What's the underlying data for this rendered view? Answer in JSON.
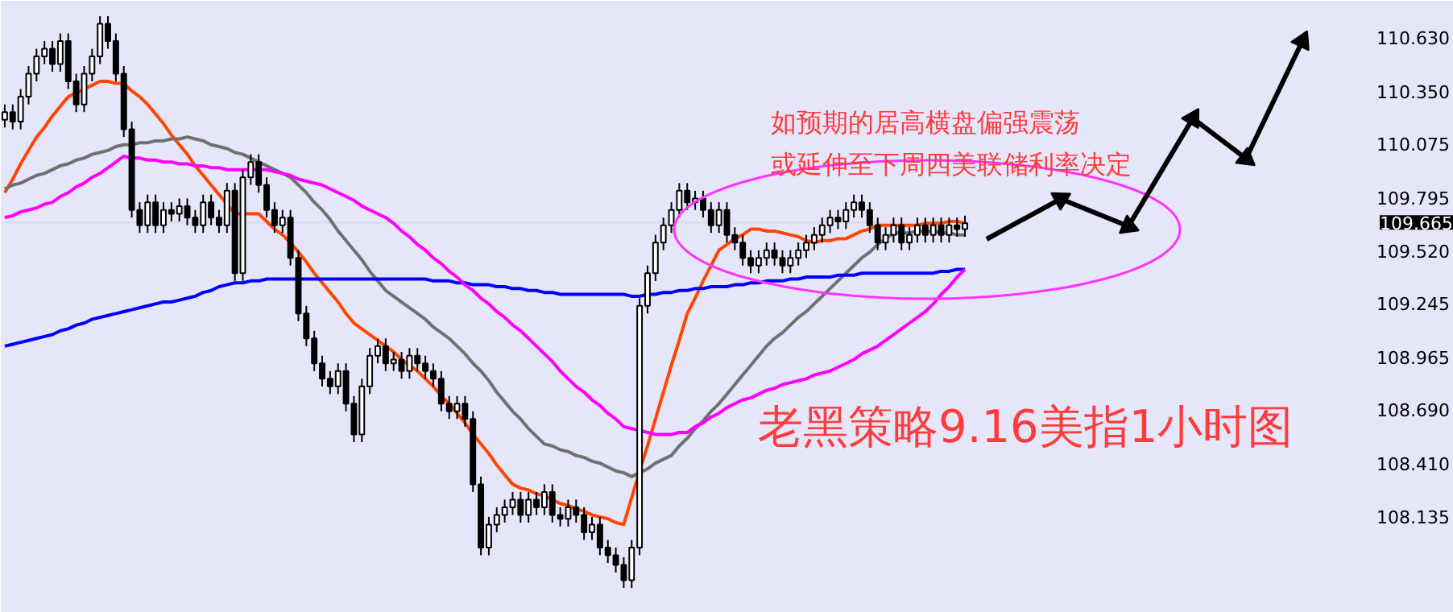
{
  "chart_data": {
    "type": "candlestick",
    "categories": [
      null,
      null,
      null,
      null,
      null,
      null,
      null,
      null,
      null,
      null,
      null,
      null,
      null,
      null,
      null,
      null,
      null,
      null,
      null,
      null,
      null,
      null,
      null,
      null,
      null,
      null,
      null,
      null,
      null,
      null,
      null,
      null,
      null,
      null,
      null,
      null,
      null,
      null,
      null,
      null,
      null,
      null,
      null,
      null,
      null,
      null,
      null,
      null,
      null,
      null,
      null,
      null,
      null,
      null,
      null,
      null,
      null,
      null,
      null,
      null,
      null,
      null,
      null,
      null,
      null,
      null,
      null,
      null,
      null,
      null,
      null,
      null,
      null,
      null,
      null,
      null,
      null,
      null,
      null,
      null,
      null,
      null,
      null,
      null,
      null,
      null,
      null,
      null,
      null,
      null,
      null,
      null,
      null,
      null,
      null,
      null,
      null,
      null,
      null,
      null,
      null,
      null,
      null,
      null,
      null,
      null,
      null,
      null,
      null,
      null,
      null,
      null,
      null,
      null,
      null,
      null,
      null,
      null,
      null,
      null,
      null,
      null
    ],
    "ohlc": [
      [
        110.2,
        110.28,
        110.16,
        110.24
      ],
      [
        110.24,
        110.28,
        110.15,
        110.19
      ],
      [
        110.19,
        110.36,
        110.15,
        110.32
      ],
      [
        110.32,
        110.48,
        110.28,
        110.44
      ],
      [
        110.44,
        110.57,
        110.4,
        110.53
      ],
      [
        110.53,
        110.61,
        110.49,
        110.57
      ],
      [
        110.57,
        110.61,
        110.45,
        110.49
      ],
      [
        110.49,
        110.65,
        110.45,
        110.61
      ],
      [
        110.61,
        110.65,
        110.36,
        110.4
      ],
      [
        110.4,
        110.44,
        110.24,
        110.28
      ],
      [
        110.28,
        110.48,
        110.24,
        110.44
      ],
      [
        110.44,
        110.57,
        110.4,
        110.53
      ],
      [
        110.53,
        110.74,
        110.49,
        110.7
      ],
      [
        110.7,
        110.74,
        110.57,
        110.61
      ],
      [
        110.61,
        110.65,
        110.4,
        110.44
      ],
      [
        110.44,
        110.48,
        110.11,
        110.15
      ],
      [
        110.15,
        110.19,
        109.69,
        109.73
      ],
      [
        109.73,
        109.77,
        109.61,
        109.65
      ],
      [
        109.65,
        109.81,
        109.61,
        109.77
      ],
      [
        109.77,
        109.81,
        109.61,
        109.65
      ],
      [
        109.65,
        109.77,
        109.61,
        109.73
      ],
      [
        109.73,
        109.77,
        109.67,
        109.71
      ],
      [
        109.71,
        109.79,
        109.67,
        109.75
      ],
      [
        109.75,
        109.79,
        109.65,
        109.69
      ],
      [
        109.69,
        109.73,
        109.61,
        109.65
      ],
      [
        109.65,
        109.81,
        109.61,
        109.77
      ],
      [
        109.77,
        109.81,
        109.65,
        109.69
      ],
      [
        109.69,
        109.73,
        109.61,
        109.65
      ],
      [
        109.65,
        109.87,
        109.61,
        109.83
      ],
      [
        109.83,
        109.87,
        109.36,
        109.4
      ],
      [
        109.4,
        109.94,
        109.36,
        109.9
      ],
      [
        109.9,
        110.02,
        109.86,
        109.98
      ],
      [
        109.98,
        110.02,
        109.82,
        109.86
      ],
      [
        109.86,
        109.9,
        109.69,
        109.73
      ],
      [
        109.73,
        109.77,
        109.61,
        109.65
      ],
      [
        109.65,
        109.73,
        109.61,
        109.69
      ],
      [
        109.69,
        109.73,
        109.44,
        109.48
      ],
      [
        109.48,
        109.52,
        109.15,
        109.19
      ],
      [
        109.19,
        109.23,
        109.02,
        109.06
      ],
      [
        109.06,
        109.1,
        108.89,
        108.93
      ],
      [
        108.93,
        108.97,
        108.81,
        108.85
      ],
      [
        108.85,
        108.89,
        108.77,
        108.81
      ],
      [
        108.81,
        108.93,
        108.77,
        108.89
      ],
      [
        108.89,
        108.93,
        108.68,
        108.72
      ],
      [
        108.72,
        108.76,
        108.52,
        108.56
      ],
      [
        108.56,
        108.85,
        108.52,
        108.81
      ],
      [
        108.81,
        109.01,
        108.77,
        108.97
      ],
      [
        108.97,
        109.06,
        108.93,
        109.02
      ],
      [
        109.02,
        109.06,
        108.89,
        108.93
      ],
      [
        108.93,
        108.99,
        108.89,
        108.95
      ],
      [
        108.95,
        108.99,
        108.85,
        108.89
      ],
      [
        108.89,
        109.01,
        108.85,
        108.97
      ],
      [
        108.97,
        109.01,
        108.89,
        108.93
      ],
      [
        108.93,
        108.97,
        108.85,
        108.89
      ],
      [
        108.89,
        108.93,
        108.81,
        108.85
      ],
      [
        108.85,
        108.89,
        108.68,
        108.72
      ],
      [
        108.72,
        108.76,
        108.64,
        108.68
      ],
      [
        108.68,
        108.76,
        108.64,
        108.72
      ],
      [
        108.72,
        108.76,
        108.6,
        108.64
      ],
      [
        108.64,
        108.68,
        108.26,
        108.3
      ],
      [
        108.3,
        108.34,
        107.93,
        107.97
      ],
      [
        107.97,
        108.13,
        107.93,
        108.09
      ],
      [
        108.09,
        108.18,
        108.05,
        108.14
      ],
      [
        108.14,
        108.22,
        108.1,
        108.18
      ],
      [
        108.18,
        108.26,
        108.14,
        108.22
      ],
      [
        108.22,
        108.26,
        108.1,
        108.14
      ],
      [
        108.14,
        108.26,
        108.1,
        108.22
      ],
      [
        108.22,
        108.26,
        108.14,
        108.18
      ],
      [
        108.18,
        108.3,
        108.14,
        108.26
      ],
      [
        108.26,
        108.3,
        108.1,
        108.14
      ],
      [
        108.14,
        108.18,
        108.08,
        108.12
      ],
      [
        108.12,
        108.22,
        108.08,
        108.18
      ],
      [
        108.18,
        108.22,
        108.1,
        108.14
      ],
      [
        108.14,
        108.18,
        108.01,
        108.05
      ],
      [
        108.05,
        108.13,
        108.01,
        108.09
      ],
      [
        108.09,
        108.13,
        107.93,
        107.97
      ],
      [
        107.97,
        108.01,
        107.89,
        107.93
      ],
      [
        107.93,
        107.97,
        107.84,
        107.88
      ],
      [
        107.88,
        107.92,
        107.76,
        107.8
      ],
      [
        107.8,
        108.01,
        107.76,
        107.97
      ],
      [
        107.97,
        109.27,
        107.93,
        109.23
      ],
      [
        109.23,
        109.44,
        109.19,
        109.4
      ],
      [
        109.4,
        109.6,
        109.36,
        109.56
      ],
      [
        109.56,
        109.69,
        109.52,
        109.65
      ],
      [
        109.65,
        109.77,
        109.61,
        109.73
      ],
      [
        109.73,
        109.87,
        109.69,
        109.83
      ],
      [
        109.83,
        109.87,
        109.73,
        109.77
      ],
      [
        109.77,
        109.83,
        109.73,
        109.79
      ],
      [
        109.79,
        109.83,
        109.69,
        109.73
      ],
      [
        109.73,
        109.77,
        109.61,
        109.65
      ],
      [
        109.65,
        109.77,
        109.61,
        109.73
      ],
      [
        109.73,
        109.77,
        109.56,
        109.6
      ],
      [
        109.6,
        109.64,
        109.52,
        109.56
      ],
      [
        109.56,
        109.6,
        109.44,
        109.48
      ],
      [
        109.48,
        109.52,
        109.4,
        109.44
      ],
      [
        109.44,
        109.52,
        109.4,
        109.48
      ],
      [
        109.48,
        109.56,
        109.44,
        109.52
      ],
      [
        109.52,
        109.56,
        109.44,
        109.48
      ],
      [
        109.48,
        109.52,
        109.4,
        109.44
      ],
      [
        109.44,
        109.52,
        109.4,
        109.48
      ],
      [
        109.48,
        109.56,
        109.44,
        109.52
      ],
      [
        109.52,
        109.6,
        109.48,
        109.56
      ],
      [
        109.56,
        109.64,
        109.52,
        109.6
      ],
      [
        109.6,
        109.69,
        109.56,
        109.65
      ],
      [
        109.65,
        109.73,
        109.61,
        109.69
      ],
      [
        109.69,
        109.73,
        109.63,
        109.67
      ],
      [
        109.67,
        109.77,
        109.63,
        109.73
      ],
      [
        109.73,
        109.81,
        109.69,
        109.77
      ],
      [
        109.77,
        109.81,
        109.69,
        109.73
      ],
      [
        109.73,
        109.77,
        109.61,
        109.65
      ],
      [
        109.65,
        109.69,
        109.52,
        109.56
      ],
      [
        109.56,
        109.64,
        109.52,
        109.6
      ],
      [
        109.6,
        109.69,
        109.56,
        109.65
      ],
      [
        109.65,
        109.69,
        109.52,
        109.56
      ],
      [
        109.56,
        109.64,
        109.52,
        109.6
      ],
      [
        109.6,
        109.69,
        109.56,
        109.65
      ],
      [
        109.65,
        109.69,
        109.56,
        109.6
      ],
      [
        109.6,
        109.69,
        109.56,
        109.65
      ],
      [
        109.65,
        109.69,
        109.56,
        109.6
      ],
      [
        109.6,
        109.69,
        109.56,
        109.65
      ],
      [
        109.65,
        109.69,
        109.59,
        109.63
      ],
      [
        109.63,
        109.7,
        109.59,
        109.66
      ]
    ],
    "series": [
      {
        "type": "line",
        "color": "#ff4500",
        "values": [
          109.82,
          109.89,
          109.97,
          110.04,
          110.11,
          110.16,
          110.22,
          110.27,
          110.32,
          110.34,
          110.36,
          110.38,
          110.4,
          110.4,
          110.39,
          110.39,
          110.35,
          110.32,
          110.28,
          110.23,
          110.18,
          110.12,
          110.07,
          110.02,
          109.96,
          109.91,
          109.86,
          109.81,
          109.76,
          109.71,
          109.71,
          109.71,
          109.71,
          109.67,
          109.63,
          109.6,
          109.56,
          109.51,
          109.46,
          109.4,
          109.35,
          109.3,
          109.25,
          109.19,
          109.14,
          109.11,
          109.08,
          109.05,
          109.02,
          108.99,
          108.95,
          108.92,
          108.89,
          108.85,
          108.81,
          108.76,
          108.72,
          108.67,
          108.62,
          108.56,
          108.51,
          108.46,
          108.4,
          108.35,
          108.3,
          108.28,
          108.27,
          108.25,
          108.24,
          108.22,
          108.2,
          108.19,
          108.17,
          108.16,
          108.14,
          108.13,
          108.12,
          108.1,
          108.09,
          108.23,
          108.37,
          108.5,
          108.64,
          108.78,
          108.92,
          109.05,
          109.19,
          109.27,
          109.36,
          109.44,
          109.52,
          109.55,
          109.58,
          109.6,
          109.63,
          109.63,
          109.62,
          109.62,
          109.61,
          109.6,
          109.59,
          109.57,
          109.56,
          109.57,
          109.57,
          109.58,
          109.58,
          109.6,
          109.62,
          109.63,
          109.65,
          109.65,
          109.65,
          109.65,
          109.65,
          109.65,
          109.66,
          109.66,
          109.66,
          109.67,
          109.67,
          109.66
        ]
      },
      {
        "type": "line",
        "color": "#707070",
        "values": [
          109.84,
          109.86,
          109.87,
          109.89,
          109.91,
          109.92,
          109.94,
          109.96,
          109.97,
          109.99,
          110.0,
          110.02,
          110.03,
          110.04,
          110.06,
          110.07,
          110.07,
          110.08,
          110.08,
          110.09,
          110.09,
          110.1,
          110.1,
          110.11,
          110.1,
          110.09,
          110.07,
          110.06,
          110.05,
          110.03,
          110.02,
          110.0,
          109.98,
          109.96,
          109.94,
          109.92,
          109.9,
          109.86,
          109.82,
          109.77,
          109.73,
          109.68,
          109.62,
          109.57,
          109.52,
          109.47,
          109.41,
          109.36,
          109.31,
          109.28,
          109.25,
          109.22,
          109.19,
          109.16,
          109.12,
          109.09,
          109.06,
          109.02,
          108.98,
          108.93,
          108.89,
          108.84,
          108.78,
          108.73,
          108.68,
          108.64,
          108.59,
          108.55,
          108.51,
          108.5,
          108.48,
          108.47,
          108.45,
          108.44,
          108.42,
          108.41,
          108.39,
          108.37,
          108.36,
          108.34,
          108.36,
          108.38,
          108.41,
          108.43,
          108.45,
          108.5,
          108.54,
          108.59,
          108.63,
          108.68,
          108.72,
          108.77,
          108.82,
          108.87,
          108.92,
          108.97,
          109.02,
          109.06,
          109.09,
          109.13,
          109.17,
          109.2,
          109.24,
          109.28,
          109.32,
          109.36,
          109.4,
          109.44,
          109.48,
          109.51,
          109.55,
          109.58,
          109.61,
          109.61,
          109.61,
          109.62,
          109.62,
          109.62,
          109.61,
          109.61,
          109.6,
          109.6
        ]
      },
      {
        "type": "line",
        "color": "#0000ff",
        "values": [
          109.02,
          109.03,
          109.04,
          109.05,
          109.06,
          109.07,
          109.08,
          109.1,
          109.11,
          109.13,
          109.14,
          109.16,
          109.17,
          109.18,
          109.19,
          109.2,
          109.21,
          109.22,
          109.23,
          109.24,
          109.25,
          109.25,
          109.26,
          109.27,
          109.28,
          109.3,
          109.31,
          109.33,
          109.34,
          109.35,
          109.35,
          109.36,
          109.36,
          109.37,
          109.37,
          109.37,
          109.37,
          109.37,
          109.37,
          109.37,
          109.37,
          109.37,
          109.37,
          109.37,
          109.37,
          109.37,
          109.37,
          109.37,
          109.37,
          109.37,
          109.37,
          109.37,
          109.37,
          109.37,
          109.36,
          109.36,
          109.36,
          109.35,
          109.35,
          109.34,
          109.34,
          109.34,
          109.33,
          109.33,
          109.32,
          109.32,
          109.31,
          109.31,
          109.3,
          109.3,
          109.29,
          109.29,
          109.29,
          109.29,
          109.29,
          109.29,
          109.29,
          109.29,
          109.29,
          109.28,
          109.28,
          109.29,
          109.29,
          109.3,
          109.3,
          109.31,
          109.31,
          109.32,
          109.32,
          109.33,
          109.33,
          109.33,
          109.34,
          109.34,
          109.35,
          109.35,
          109.36,
          109.36,
          109.36,
          109.37,
          109.37,
          109.38,
          109.38,
          109.38,
          109.38,
          109.39,
          109.39,
          109.39,
          109.4,
          109.4,
          109.4,
          109.4,
          109.4,
          109.4,
          109.4,
          109.4,
          109.4,
          109.4,
          109.41,
          109.41,
          109.42,
          109.42
        ]
      },
      {
        "type": "line",
        "color": "#ff00ff",
        "values": [
          109.69,
          109.7,
          109.72,
          109.73,
          109.74,
          109.76,
          109.77,
          109.8,
          109.82,
          109.85,
          109.87,
          109.9,
          109.92,
          109.95,
          109.98,
          110.01,
          110.0,
          110.0,
          109.99,
          109.99,
          109.98,
          109.98,
          109.97,
          109.97,
          109.96,
          109.96,
          109.95,
          109.95,
          109.94,
          109.94,
          109.94,
          109.94,
          109.94,
          109.94,
          109.93,
          109.92,
          109.91,
          109.89,
          109.88,
          109.87,
          109.86,
          109.84,
          109.82,
          109.8,
          109.78,
          109.75,
          109.73,
          109.71,
          109.69,
          109.66,
          109.62,
          109.59,
          109.55,
          109.52,
          109.48,
          109.45,
          109.41,
          109.38,
          109.34,
          109.31,
          109.27,
          109.24,
          109.2,
          109.17,
          109.13,
          109.1,
          109.06,
          109.02,
          108.98,
          108.94,
          108.89,
          108.85,
          108.81,
          108.78,
          108.74,
          108.71,
          108.67,
          108.64,
          108.6,
          108.59,
          108.58,
          108.57,
          108.56,
          108.56,
          108.56,
          108.57,
          108.57,
          108.6,
          108.62,
          108.65,
          108.67,
          108.7,
          108.72,
          108.74,
          108.75,
          108.77,
          108.79,
          108.8,
          108.82,
          108.83,
          108.84,
          108.85,
          108.87,
          108.88,
          108.89,
          108.91,
          108.93,
          108.95,
          108.98,
          109.0,
          109.02,
          109.05,
          109.08,
          109.11,
          109.14,
          109.17,
          109.2,
          109.24,
          109.29,
          109.33,
          109.38,
          109.42
        ]
      }
    ],
    "ylim": [
      107.63,
      110.82
    ],
    "yticks": [
      {
        "value": 110.63,
        "label": "110.630"
      },
      {
        "value": 110.35,
        "label": "110.350"
      },
      {
        "value": 110.075,
        "label": "110.075"
      },
      {
        "value": 109.795,
        "label": "109.795"
      },
      {
        "value": 109.52,
        "label": "109.520"
      },
      {
        "value": 109.245,
        "label": "109.245"
      },
      {
        "value": 108.965,
        "label": "108.965"
      },
      {
        "value": 108.69,
        "label": "108.690"
      },
      {
        "value": 108.41,
        "label": "108.410"
      },
      {
        "value": 108.135,
        "label": "108.135"
      }
    ],
    "tick_labels": "y",
    "ref_lines": [
      {
        "axis": "y",
        "value": 109.665,
        "label": "109.665",
        "color": "#c0c0c0"
      }
    ],
    "annotations": [
      "如预期的居高横盘偏强震荡",
      "或延伸至下周四美联储利率决定",
      "老黑策略9.16美指1小时图"
    ],
    "grid": false
  }
}
